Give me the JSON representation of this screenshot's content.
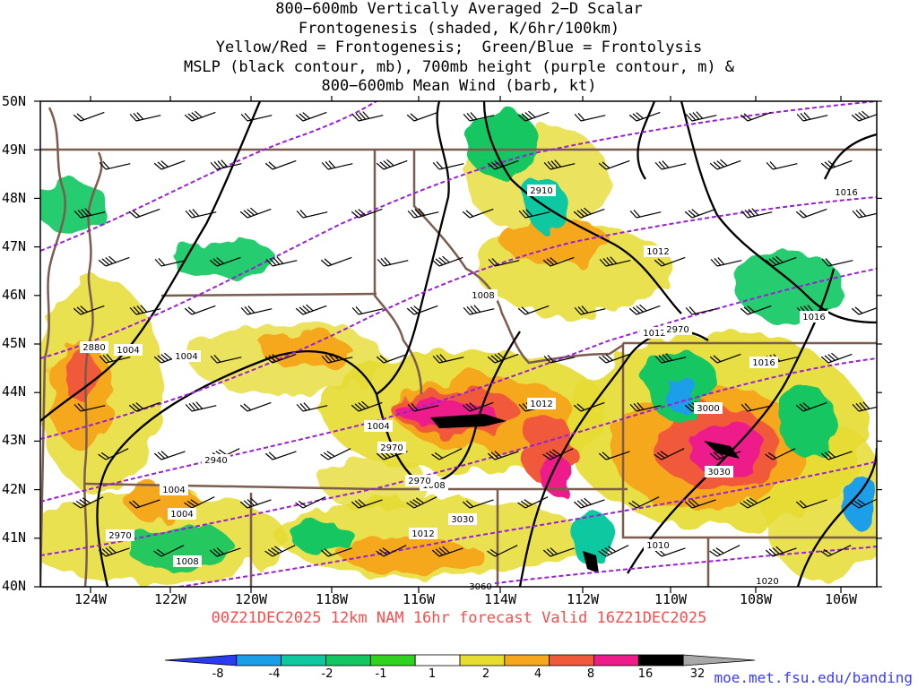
{
  "title_lines": [
    "800−600mb Vertically Averaged 2−D Scalar",
    "Frontogenesis (shaded, K/6hr/100km)",
    "Yellow/Red = Frontogenesis;  Green/Blue = Frontolysis",
    "MSLP (black contour, mb), 700mb height (purple contour, m) &",
    "800−600mb Mean Wind (barb, kt)"
  ],
  "valid_text": "00Z21DEC2025 12km NAM 16hr forecast Valid 16Z21DEC2025",
  "credit": "moe.met.fsu.edu/banding",
  "lat_labels": [
    "50N",
    "49N",
    "48N",
    "47N",
    "46N",
    "45N",
    "44N",
    "43N",
    "42N",
    "41N",
    "40N"
  ],
  "lon_labels": [
    "124W",
    "122W",
    "120W",
    "118W",
    "116W",
    "114W",
    "112W",
    "110W",
    "108W",
    "106W"
  ],
  "colorbar": {
    "labels": [
      "-8",
      "-4",
      "-2",
      "-1",
      "1",
      "2",
      "4",
      "8",
      "16",
      "32"
    ],
    "colors": [
      "#2a3cf2",
      "#1a9ee8",
      "#10c8a0",
      "#12c660",
      "#2fd21e",
      "#ffffff",
      "#e6dc32",
      "#f5a81e",
      "#f05a3a",
      "#ee1c8a",
      "#000000",
      "#a8a8a8"
    ]
  },
  "mslp_labels": [
    "1004",
    "1004",
    "1004",
    "1004",
    "1004",
    "1008",
    "1008",
    "1008",
    "1012",
    "1012",
    "1012",
    "1012",
    "1016",
    "1016",
    "1016",
    "1020",
    "1010"
  ],
  "height_labels": [
    "2880",
    "2910",
    "2940",
    "2970",
    "2970",
    "2970",
    "3000",
    "3030",
    "3030",
    "3060",
    "2970"
  ],
  "colors": {
    "mslp": "#000000",
    "height": "#9b1fd6",
    "border": "#7b5c4e",
    "title": "#000000",
    "valid": "#ff4a4a",
    "credit": "#3a3aff"
  }
}
